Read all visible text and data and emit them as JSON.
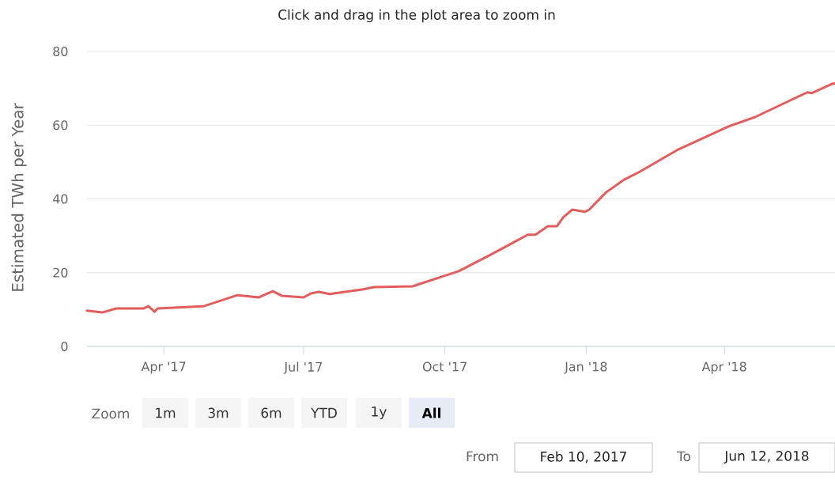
{
  "chart_data": {
    "type": "line",
    "title": "Click and drag in the plot area to zoom in",
    "ylabel": "Estimated TWh per Year",
    "x": [
      "2017-02-10",
      "2017-02-20",
      "2017-03-01",
      "2017-03-19",
      "2017-03-22",
      "2017-03-26",
      "2017-03-28",
      "2017-04-27",
      "2017-05-08",
      "2017-05-19",
      "2017-06-02",
      "2017-06-11",
      "2017-06-17",
      "2017-07-01",
      "2017-07-06",
      "2017-07-11",
      "2017-07-18",
      "2017-08-09",
      "2017-08-16",
      "2017-09-10",
      "2017-09-15",
      "2017-09-29",
      "2017-10-10",
      "2017-10-30",
      "2017-11-16",
      "2017-11-24",
      "2017-11-29",
      "2017-12-07",
      "2017-12-13",
      "2017-12-17",
      "2017-12-23",
      "2017-12-31",
      "2018-01-03",
      "2018-01-14",
      "2018-01-26",
      "2018-02-05",
      "2018-03-01",
      "2018-04-04",
      "2018-04-21",
      "2018-05-25",
      "2018-05-28",
      "2018-06-10",
      "2018-06-12"
    ],
    "series": [
      {
        "color": "#e35d5d",
        "values": [
          9.7,
          9.2,
          10.3,
          10.3,
          10.9,
          9.4,
          10.3,
          10.9,
          12.4,
          13.9,
          13.3,
          15.0,
          13.7,
          13.3,
          14.4,
          14.8,
          14.2,
          15.5,
          16.1,
          16.3,
          17.0,
          18.9,
          20.4,
          24.7,
          28.5,
          30.3,
          30.3,
          32.6,
          32.6,
          35.0,
          37.1,
          36.5,
          37.1,
          41.8,
          45.3,
          47.4,
          53.2,
          59.7,
          62.2,
          68.9,
          68.7,
          71.2,
          71.3
        ]
      }
    ],
    "xlim": [
      "2017-02-10",
      "2018-06-12"
    ],
    "xticks": [
      {
        "value": "2017-04-01",
        "label": "Apr '17"
      },
      {
        "value": "2017-07-01",
        "label": "Jul '17"
      },
      {
        "value": "2017-10-01",
        "label": "Oct '17"
      },
      {
        "value": "2018-01-01",
        "label": "Jan '18"
      },
      {
        "value": "2018-04-01",
        "label": "Apr '18"
      }
    ],
    "ylim": [
      0,
      80
    ],
    "yticks": [
      0,
      20,
      40,
      60,
      80
    ],
    "grid": "y",
    "marker": "none",
    "line_style": "solid",
    "annotations": [
      "Zoom",
      "1m",
      "3m",
      "6m",
      "YTD",
      "1y",
      "All",
      "From",
      "Feb 10, 2017",
      "To",
      "Jun 12, 2018"
    ]
  }
}
